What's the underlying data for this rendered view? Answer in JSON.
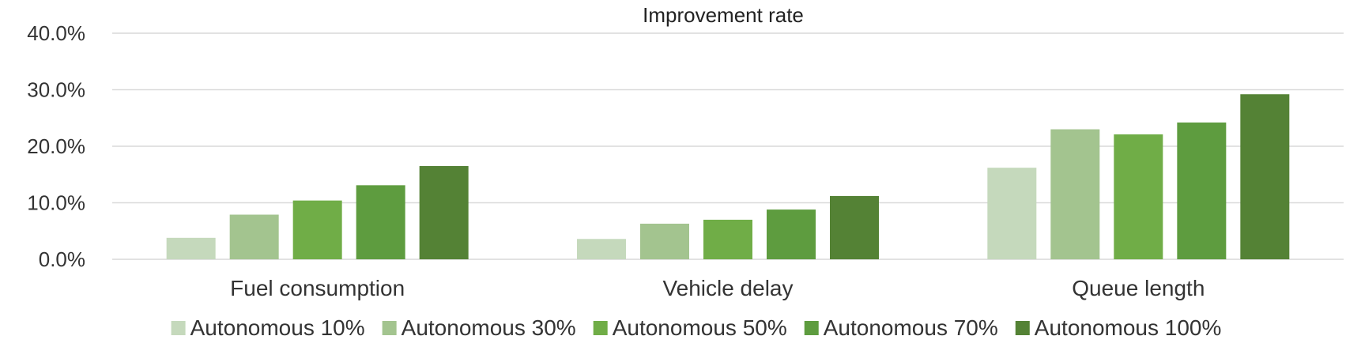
{
  "chart_data": {
    "type": "bar",
    "title": "Improvement  rate",
    "xlabel": "",
    "ylabel": "",
    "categories": [
      "Fuel consumption",
      "Vehicle delay",
      "Queue length"
    ],
    "ylim": [
      0,
      40
    ],
    "yticks": [
      0,
      10,
      20,
      30,
      40
    ],
    "ytick_labels": [
      "0.0%",
      "10.0%",
      "20.0%",
      "30.0%",
      "40.0%"
    ],
    "grid": true,
    "legend_position": "bottom",
    "series": [
      {
        "name": "Autonomous 10%",
        "color": "#c5d9bc",
        "values": [
          3.8,
          3.6,
          16.2
        ]
      },
      {
        "name": "Autonomous 30%",
        "color": "#a3c48f",
        "values": [
          7.9,
          6.3,
          23.0
        ]
      },
      {
        "name": "Autonomous 50%",
        "color": "#70ad47",
        "values": [
          10.4,
          7.0,
          22.1
        ]
      },
      {
        "name": "Autonomous 70%",
        "color": "#5e9c3f",
        "values": [
          13.1,
          8.8,
          24.2
        ]
      },
      {
        "name": "Autonomous 100%",
        "color": "#548235",
        "values": [
          16.5,
          11.2,
          29.2
        ]
      }
    ]
  }
}
